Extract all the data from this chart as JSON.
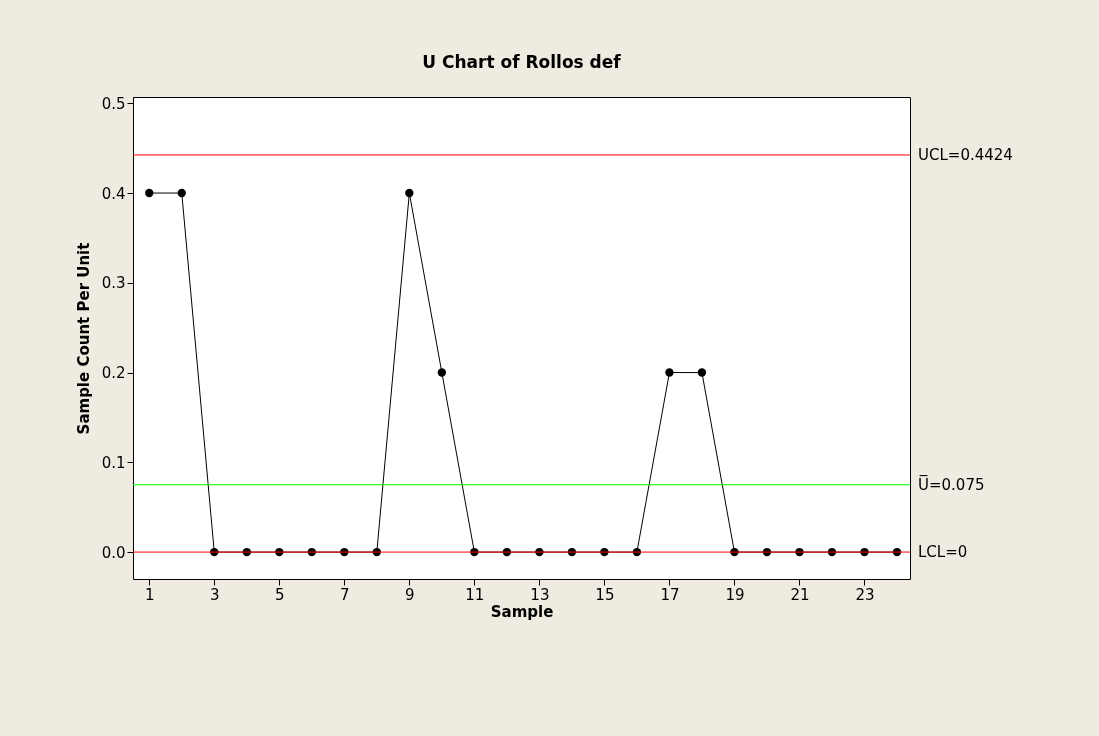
{
  "chart_data": {
    "type": "line",
    "title": "U Chart of Rollos def",
    "xlabel": "Sample",
    "ylabel": "Sample Count Per Unit",
    "x": [
      1,
      2,
      3,
      4,
      5,
      6,
      7,
      8,
      9,
      10,
      11,
      12,
      13,
      14,
      15,
      16,
      17,
      18,
      19,
      20,
      21,
      22,
      23,
      24
    ],
    "series": [
      {
        "color": "#000000",
        "values": [
          0.4,
          0.4,
          0,
          0,
          0,
          0,
          0,
          0,
          0.4,
          0.2,
          0,
          0,
          0,
          0,
          0,
          0,
          0.2,
          0.2,
          0,
          0,
          0,
          0,
          0,
          0
        ]
      }
    ],
    "xlim": [
      0.5,
      24.4
    ],
    "xticks": [
      1,
      3,
      5,
      7,
      9,
      11,
      13,
      15,
      17,
      19,
      21,
      23
    ],
    "ylim": [
      -0.03,
      0.507
    ],
    "yticks": [
      {
        "value": 0,
        "label": "0.0"
      },
      0.1,
      0.2,
      0.3,
      0.4,
      0.5
    ],
    "ref_lines": [
      {
        "axis": "y",
        "value": 0.4424,
        "label": "UCL=0.4424",
        "color": "#ff0000"
      },
      {
        "axis": "y",
        "value": 0.075,
        "label": "U̅=0.075",
        "color": "#00ff00"
      },
      {
        "axis": "y",
        "value": 0,
        "label": "LCL=0",
        "color": "#ff0000"
      }
    ],
    "grid": false,
    "marker": "circle",
    "line_style": "solid"
  }
}
